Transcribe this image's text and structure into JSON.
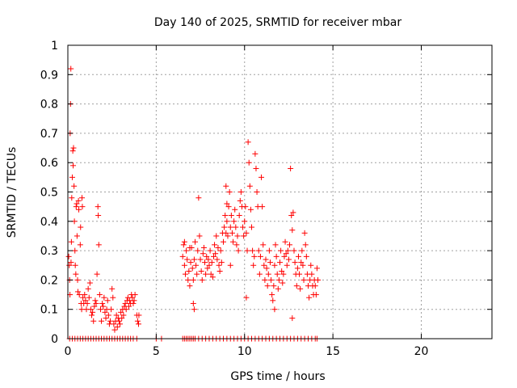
{
  "chart_data": {
    "type": "scatter",
    "title": "Day 140 of 2025, SRMTID for receiver mbar",
    "xlabel": "GPS time / hours",
    "ylabel": "SRMTID / TECUs",
    "xlim": [
      0,
      24
    ],
    "ylim": [
      0,
      1
    ],
    "xticks": [
      0,
      5,
      10,
      15,
      20
    ],
    "xtick_labels": [
      "0",
      "5",
      "10",
      "15",
      "20"
    ],
    "yticks": [
      0,
      0.1,
      0.2,
      0.3,
      0.4,
      0.5,
      0.6,
      0.7,
      0.8,
      0.9,
      1
    ],
    "ytick_labels": [
      "0",
      "0.1",
      "0.2",
      "0.3",
      "0.4",
      "0.5",
      "0.6",
      "0.7",
      "0.8",
      "0.9",
      "1"
    ],
    "grid": true,
    "marker": "plus",
    "color": "#ff0000",
    "points": [
      [
        0.05,
        0.28
      ],
      [
        0.08,
        0.25
      ],
      [
        0.1,
        0.2
      ],
      [
        0.12,
        0.15
      ],
      [
        0.13,
        0.7
      ],
      [
        0.15,
        0.8
      ],
      [
        0.17,
        0.92
      ],
      [
        0.18,
        0.26
      ],
      [
        0.2,
        0.33
      ],
      [
        0.22,
        0.48
      ],
      [
        0.25,
        0.55
      ],
      [
        0.28,
        0.64
      ],
      [
        0.3,
        0.59
      ],
      [
        0.32,
        0.65
      ],
      [
        0.35,
        0.52
      ],
      [
        0.37,
        0.4
      ],
      [
        0.4,
        0.3
      ],
      [
        0.42,
        0.25
      ],
      [
        0.45,
        0.22
      ],
      [
        0.47,
        0.45
      ],
      [
        0.5,
        0.46
      ],
      [
        0.52,
        0.35
      ],
      [
        0.55,
        0.2
      ],
      [
        0.57,
        0.16
      ],
      [
        0.6,
        0.47
      ],
      [
        0.62,
        0.44
      ],
      [
        0.65,
        0.15
      ],
      [
        0.7,
        0.32
      ],
      [
        0.72,
        0.38
      ],
      [
        0.75,
        0.12
      ],
      [
        0.78,
        0.1
      ],
      [
        0.8,
        0.48
      ],
      [
        0.82,
        0.45
      ],
      [
        0.85,
        0.14
      ],
      [
        0.9,
        0.12
      ],
      [
        0.95,
        0.15
      ],
      [
        1.0,
        0.13
      ],
      [
        1.05,
        0.1
      ],
      [
        1.1,
        0.12
      ],
      [
        1.15,
        0.17
      ],
      [
        1.2,
        0.14
      ],
      [
        1.25,
        0.19
      ],
      [
        1.3,
        0.1
      ],
      [
        1.35,
        0.08
      ],
      [
        1.4,
        0.09
      ],
      [
        1.45,
        0.06
      ],
      [
        1.5,
        0.11
      ],
      [
        1.55,
        0.13
      ],
      [
        1.6,
        0.12
      ],
      [
        1.65,
        0.22
      ],
      [
        1.7,
        0.45
      ],
      [
        1.72,
        0.42
      ],
      [
        1.75,
        0.32
      ],
      [
        1.8,
        0.15
      ],
      [
        1.85,
        0.1
      ],
      [
        1.9,
        0.06
      ],
      [
        1.95,
        0.12
      ],
      [
        2.0,
        0.11
      ],
      [
        2.05,
        0.14
      ],
      [
        2.1,
        0.09
      ],
      [
        2.15,
        0.07
      ],
      [
        2.2,
        0.1
      ],
      [
        2.25,
        0.13
      ],
      [
        2.3,
        0.08
      ],
      [
        2.35,
        0.05
      ],
      [
        2.4,
        0.06
      ],
      [
        2.45,
        0.1
      ],
      [
        2.5,
        0.17
      ],
      [
        2.55,
        0.14
      ],
      [
        2.6,
        0.05
      ],
      [
        2.65,
        0.03
      ],
      [
        2.7,
        0.06
      ],
      [
        2.75,
        0.08
      ],
      [
        2.8,
        0.04
      ],
      [
        2.85,
        0.07
      ],
      [
        2.9,
        0.06
      ],
      [
        2.95,
        0.05
      ],
      [
        3.0,
        0.09
      ],
      [
        3.05,
        0.07
      ],
      [
        3.1,
        0.1
      ],
      [
        3.15,
        0.08
      ],
      [
        3.2,
        0.11
      ],
      [
        3.25,
        0.12
      ],
      [
        3.3,
        0.1
      ],
      [
        3.35,
        0.13
      ],
      [
        3.4,
        0.14
      ],
      [
        3.45,
        0.11
      ],
      [
        3.5,
        0.13
      ],
      [
        3.55,
        0.12
      ],
      [
        3.6,
        0.15
      ],
      [
        3.65,
        0.14
      ],
      [
        3.7,
        0.12
      ],
      [
        3.75,
        0.13
      ],
      [
        3.8,
        0.15
      ],
      [
        3.9,
        0.08
      ],
      [
        3.95,
        0.06
      ],
      [
        4.0,
        0.05
      ],
      [
        4.02,
        0.08
      ],
      [
        6.5,
        0.28
      ],
      [
        6.55,
        0.32
      ],
      [
        6.6,
        0.25
      ],
      [
        6.65,
        0.22
      ],
      [
        6.7,
        0.3
      ],
      [
        6.75,
        0.27
      ],
      [
        6.8,
        0.2
      ],
      [
        6.85,
        0.23
      ],
      [
        6.9,
        0.18
      ],
      [
        6.95,
        0.26
      ],
      [
        7.0,
        0.31
      ],
      [
        7.05,
        0.24
      ],
      [
        7.1,
        0.2
      ],
      [
        7.15,
        0.27
      ],
      [
        7.2,
        0.33
      ],
      [
        7.25,
        0.25
      ],
      [
        7.3,
        0.22
      ],
      [
        7.35,
        0.3
      ],
      [
        7.4,
        0.48
      ],
      [
        7.45,
        0.35
      ],
      [
        7.5,
        0.27
      ],
      [
        7.55,
        0.23
      ],
      [
        7.6,
        0.2
      ],
      [
        7.65,
        0.29
      ],
      [
        7.7,
        0.31
      ],
      [
        7.75,
        0.26
      ],
      [
        7.8,
        0.22
      ],
      [
        7.85,
        0.28
      ],
      [
        7.9,
        0.24
      ],
      [
        7.95,
        0.27
      ],
      [
        8.0,
        0.25
      ],
      [
        8.05,
        0.3
      ],
      [
        8.1,
        0.22
      ],
      [
        8.15,
        0.26
      ],
      [
        8.2,
        0.21
      ],
      [
        8.25,
        0.28
      ],
      [
        8.3,
        0.32
      ],
      [
        8.35,
        0.29
      ],
      [
        8.4,
        0.35
      ],
      [
        8.45,
        0.27
      ],
      [
        8.5,
        0.31
      ],
      [
        8.55,
        0.25
      ],
      [
        8.6,
        0.23
      ],
      [
        8.65,
        0.3
      ],
      [
        8.7,
        0.26
      ],
      [
        8.75,
        0.36
      ],
      [
        8.8,
        0.33
      ],
      [
        8.85,
        0.38
      ],
      [
        8.9,
        0.42
      ],
      [
        8.95,
        0.36
      ],
      [
        9.0,
        0.4
      ],
      [
        9.05,
        0.35
      ],
      [
        9.1,
        0.45
      ],
      [
        9.15,
        0.5
      ],
      [
        9.2,
        0.38
      ],
      [
        9.25,
        0.42
      ],
      [
        9.3,
        0.36
      ],
      [
        9.35,
        0.33
      ],
      [
        9.4,
        0.4
      ],
      [
        9.45,
        0.44
      ],
      [
        9.5,
        0.38
      ],
      [
        9.55,
        0.32
      ],
      [
        9.6,
        0.35
      ],
      [
        9.65,
        0.3
      ],
      [
        9.7,
        0.42
      ],
      [
        9.75,
        0.47
      ],
      [
        9.8,
        0.5
      ],
      [
        9.85,
        0.45
      ],
      [
        9.9,
        0.38
      ],
      [
        9.95,
        0.35
      ],
      [
        10.0,
        0.4
      ],
      [
        10.05,
        0.45
      ],
      [
        10.1,
        0.36
      ],
      [
        10.15,
        0.3
      ],
      [
        10.2,
        0.67
      ],
      [
        10.25,
        0.6
      ],
      [
        10.3,
        0.52
      ],
      [
        10.35,
        0.44
      ],
      [
        10.4,
        0.38
      ],
      [
        10.45,
        0.3
      ],
      [
        10.5,
        0.25
      ],
      [
        10.55,
        0.28
      ],
      [
        10.6,
        0.63
      ],
      [
        10.65,
        0.58
      ],
      [
        10.7,
        0.5
      ],
      [
        10.75,
        0.45
      ],
      [
        10.8,
        0.3
      ],
      [
        10.85,
        0.22
      ],
      [
        10.9,
        0.28
      ],
      [
        10.95,
        0.55
      ],
      [
        11.0,
        0.45
      ],
      [
        11.05,
        0.32
      ],
      [
        11.1,
        0.25
      ],
      [
        11.15,
        0.2
      ],
      [
        11.2,
        0.27
      ],
      [
        11.25,
        0.24
      ],
      [
        11.3,
        0.18
      ],
      [
        11.35,
        0.22
      ],
      [
        11.4,
        0.3
      ],
      [
        11.45,
        0.26
      ],
      [
        11.5,
        0.2
      ],
      [
        11.55,
        0.15
      ],
      [
        11.6,
        0.13
      ],
      [
        11.65,
        0.18
      ],
      [
        11.7,
        0.25
      ],
      [
        11.75,
        0.32
      ],
      [
        11.8,
        0.28
      ],
      [
        11.85,
        0.22
      ],
      [
        11.9,
        0.17
      ],
      [
        11.95,
        0.2
      ],
      [
        12.0,
        0.26
      ],
      [
        12.05,
        0.3
      ],
      [
        12.1,
        0.23
      ],
      [
        12.15,
        0.19
      ],
      [
        12.2,
        0.22
      ],
      [
        12.25,
        0.28
      ],
      [
        12.3,
        0.33
      ],
      [
        12.35,
        0.29
      ],
      [
        12.4,
        0.25
      ],
      [
        12.45,
        0.3
      ],
      [
        12.5,
        0.27
      ],
      [
        12.55,
        0.32
      ],
      [
        12.6,
        0.58
      ],
      [
        12.65,
        0.42
      ],
      [
        12.7,
        0.37
      ],
      [
        12.75,
        0.43
      ],
      [
        12.8,
        0.3
      ],
      [
        12.85,
        0.26
      ],
      [
        12.9,
        0.22
      ],
      [
        12.95,
        0.18
      ],
      [
        13.0,
        0.24
      ],
      [
        13.05,
        0.28
      ],
      [
        13.1,
        0.22
      ],
      [
        13.15,
        0.17
      ],
      [
        13.2,
        0.26
      ],
      [
        13.25,
        0.3
      ],
      [
        13.3,
        0.25
      ],
      [
        13.35,
        0.2
      ],
      [
        13.4,
        0.36
      ],
      [
        13.45,
        0.32
      ],
      [
        13.5,
        0.28
      ],
      [
        13.55,
        0.22
      ],
      [
        13.6,
        0.18
      ],
      [
        13.65,
        0.14
      ],
      [
        13.7,
        0.2
      ],
      [
        13.75,
        0.25
      ],
      [
        13.8,
        0.22
      ],
      [
        13.85,
        0.18
      ],
      [
        13.9,
        0.15
      ],
      [
        13.95,
        0.2
      ],
      [
        14.0,
        0.18
      ],
      [
        14.05,
        0.15
      ],
      [
        14.1,
        0.24
      ],
      [
        14.15,
        0.2
      ],
      [
        12.7,
        0.07
      ],
      [
        7.1,
        0.12
      ],
      [
        7.15,
        0.1
      ],
      [
        9.2,
        0.25
      ],
      [
        10.1,
        0.14
      ],
      [
        11.7,
        0.1
      ],
      [
        6.6,
        0.33
      ],
      [
        6.9,
        0.31
      ],
      [
        9.0,
        0.46
      ],
      [
        8.95,
        0.52
      ]
    ],
    "zero_points_x": [
      0.1,
      0.25,
      0.4,
      0.55,
      0.7,
      0.85,
      1.0,
      1.15,
      1.3,
      1.45,
      1.6,
      1.75,
      1.9,
      2.05,
      2.2,
      2.35,
      2.5,
      2.65,
      2.8,
      2.95,
      3.1,
      3.25,
      3.4,
      3.55,
      3.7,
      3.9,
      5.0,
      5.3,
      6.5,
      6.6,
      6.7,
      6.8,
      6.9,
      7.0,
      7.1,
      7.2,
      7.4,
      7.6,
      7.8,
      8.0,
      8.2,
      8.4,
      8.6,
      8.8,
      9.0,
      9.2,
      9.4,
      9.6,
      9.8,
      10.0,
      10.2,
      10.4,
      10.6,
      10.8,
      11.0,
      11.2,
      11.4,
      11.6,
      11.8,
      12.0,
      12.2,
      12.4,
      12.6,
      12.8,
      13.0,
      13.2,
      13.4,
      13.6,
      13.8,
      14.0,
      14.1
    ]
  }
}
